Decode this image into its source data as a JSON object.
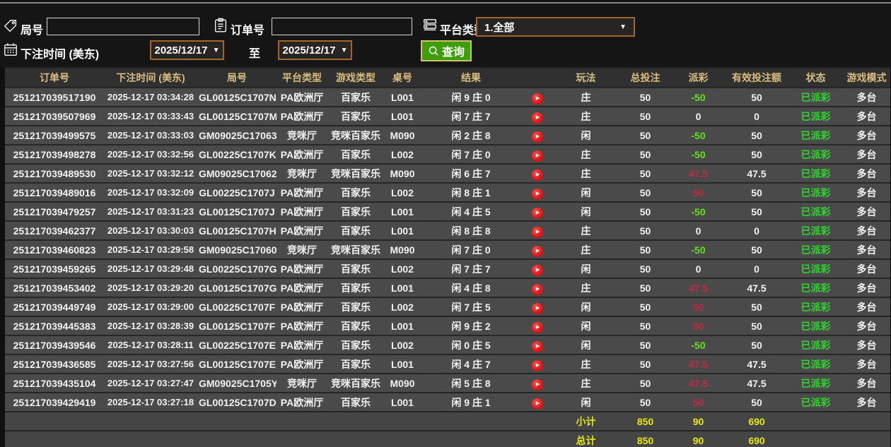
{
  "filters": {
    "round_label": "局号",
    "order_label": "订单号",
    "platform_label": "平台类型",
    "platform_value": "1.全部",
    "bet_time_label": "下注时间 (美东)",
    "date_from": "2025/12/17",
    "date_to": "2025/12/17",
    "to_label": "至",
    "search_label": "查询",
    "round_value": "",
    "order_value": ""
  },
  "colors": {
    "header_text": "#d9bd80",
    "row_bg": "#4a4a4a",
    "loss_green": "#62e01a",
    "win_red": "#c12a40",
    "paid_green": "#2ed52e",
    "total_yellow": "#e6e800",
    "button_green": "#3e9f0b",
    "select_border_orange": "#a0662a"
  },
  "table": {
    "headers": [
      "订单号",
      "下注时间 (美东)",
      "局号",
      "平台类型",
      "游戏类型",
      "桌号",
      "结果",
      "",
      "玩法",
      "总投注",
      "派彩",
      "有效投注额",
      "状态",
      "游戏模式"
    ],
    "rows": [
      {
        "order_no": "251217039517190",
        "bet_time": "2025-12-17 03:34:28",
        "round_no": "GL00125C1707N",
        "platform": "PA欧洲厅",
        "game_type": "百家乐",
        "table_no": "L001",
        "result": "闲 9 庄 0",
        "play": "庄",
        "total_bet": "50",
        "payout": "-50",
        "payout_tone": "neg",
        "valid_bet": "50",
        "status": "已派彩",
        "mode": "多台"
      },
      {
        "order_no": "251217039507969",
        "bet_time": "2025-12-17 03:33:43",
        "round_no": "GL00125C1707M",
        "platform": "PA欧洲厅",
        "game_type": "百家乐",
        "table_no": "L001",
        "result": "闲 7 庄 7",
        "play": "庄",
        "total_bet": "50",
        "payout": "0",
        "payout_tone": "zero",
        "valid_bet": "0",
        "status": "已派彩",
        "mode": "多台"
      },
      {
        "order_no": "251217039499575",
        "bet_time": "2025-12-17 03:33:03",
        "round_no": "GM09025C17063",
        "platform": "竞咪厅",
        "game_type": "竞咪百家乐",
        "table_no": "M090",
        "result": "闲 2 庄 8",
        "play": "闲",
        "total_bet": "50",
        "payout": "-50",
        "payout_tone": "neg",
        "valid_bet": "50",
        "status": "已派彩",
        "mode": "多台"
      },
      {
        "order_no": "251217039498278",
        "bet_time": "2025-12-17 03:32:56",
        "round_no": "GL00225C1707K",
        "platform": "PA欧洲厅",
        "game_type": "百家乐",
        "table_no": "L002",
        "result": "闲 7 庄 0",
        "play": "庄",
        "total_bet": "50",
        "payout": "-50",
        "payout_tone": "neg",
        "valid_bet": "50",
        "status": "已派彩",
        "mode": "多台"
      },
      {
        "order_no": "251217039489530",
        "bet_time": "2025-12-17 03:32:12",
        "round_no": "GM09025C17062",
        "platform": "竞咪厅",
        "game_type": "竞咪百家乐",
        "table_no": "M090",
        "result": "闲 6 庄 7",
        "play": "庄",
        "total_bet": "50",
        "payout": "47.5",
        "payout_tone": "pos",
        "valid_bet": "47.5",
        "status": "已派彩",
        "mode": "多台"
      },
      {
        "order_no": "251217039489016",
        "bet_time": "2025-12-17 03:32:09",
        "round_no": "GL00225C1707J",
        "platform": "PA欧洲厅",
        "game_type": "百家乐",
        "table_no": "L002",
        "result": "闲 8 庄 1",
        "play": "闲",
        "total_bet": "50",
        "payout": "50",
        "payout_tone": "pos",
        "valid_bet": "50",
        "status": "已派彩",
        "mode": "多台"
      },
      {
        "order_no": "251217039479257",
        "bet_time": "2025-12-17 03:31:23",
        "round_no": "GL00125C1707J",
        "platform": "PA欧洲厅",
        "game_type": "百家乐",
        "table_no": "L001",
        "result": "闲 4 庄 5",
        "play": "闲",
        "total_bet": "50",
        "payout": "-50",
        "payout_tone": "neg",
        "valid_bet": "50",
        "status": "已派彩",
        "mode": "多台"
      },
      {
        "order_no": "251217039462377",
        "bet_time": "2025-12-17 03:30:03",
        "round_no": "GL00125C1707H",
        "platform": "PA欧洲厅",
        "game_type": "百家乐",
        "table_no": "L001",
        "result": "闲 8 庄 8",
        "play": "庄",
        "total_bet": "50",
        "payout": "0",
        "payout_tone": "zero",
        "valid_bet": "0",
        "status": "已派彩",
        "mode": "多台"
      },
      {
        "order_no": "251217039460823",
        "bet_time": "2025-12-17 03:29:58",
        "round_no": "GM09025C17060",
        "platform": "竞咪厅",
        "game_type": "竞咪百家乐",
        "table_no": "M090",
        "result": "闲 7 庄 0",
        "play": "庄",
        "total_bet": "50",
        "payout": "-50",
        "payout_tone": "neg",
        "valid_bet": "50",
        "status": "已派彩",
        "mode": "多台"
      },
      {
        "order_no": "251217039459265",
        "bet_time": "2025-12-17 03:29:48",
        "round_no": "GL00225C1707G",
        "platform": "PA欧洲厅",
        "game_type": "百家乐",
        "table_no": "L002",
        "result": "闲 7 庄 7",
        "play": "闲",
        "total_bet": "50",
        "payout": "0",
        "payout_tone": "zero",
        "valid_bet": "0",
        "status": "已派彩",
        "mode": "多台"
      },
      {
        "order_no": "251217039453402",
        "bet_time": "2025-12-17 03:29:20",
        "round_no": "GL00125C1707G",
        "platform": "PA欧洲厅",
        "game_type": "百家乐",
        "table_no": "L001",
        "result": "闲 4 庄 8",
        "play": "庄",
        "total_bet": "50",
        "payout": "47.5",
        "payout_tone": "pos",
        "valid_bet": "47.5",
        "status": "已派彩",
        "mode": "多台"
      },
      {
        "order_no": "251217039449749",
        "bet_time": "2025-12-17 03:29:00",
        "round_no": "GL00225C1707F",
        "platform": "PA欧洲厅",
        "game_type": "百家乐",
        "table_no": "L002",
        "result": "闲 7 庄 5",
        "play": "闲",
        "total_bet": "50",
        "payout": "50",
        "payout_tone": "pos",
        "valid_bet": "50",
        "status": "已派彩",
        "mode": "多台"
      },
      {
        "order_no": "251217039445383",
        "bet_time": "2025-12-17 03:28:39",
        "round_no": "GL00125C1707F",
        "platform": "PA欧洲厅",
        "game_type": "百家乐",
        "table_no": "L001",
        "result": "闲 9 庄 2",
        "play": "闲",
        "total_bet": "50",
        "payout": "50",
        "payout_tone": "pos",
        "valid_bet": "50",
        "status": "已派彩",
        "mode": "多台"
      },
      {
        "order_no": "251217039439546",
        "bet_time": "2025-12-17 03:28:11",
        "round_no": "GL00225C1707E",
        "platform": "PA欧洲厅",
        "game_type": "百家乐",
        "table_no": "L002",
        "result": "闲 0 庄 5",
        "play": "闲",
        "total_bet": "50",
        "payout": "-50",
        "payout_tone": "neg",
        "valid_bet": "50",
        "status": "已派彩",
        "mode": "多台"
      },
      {
        "order_no": "251217039436585",
        "bet_time": "2025-12-17 03:27:56",
        "round_no": "GL00125C1707E",
        "platform": "PA欧洲厅",
        "game_type": "百家乐",
        "table_no": "L001",
        "result": "闲 4 庄 7",
        "play": "庄",
        "total_bet": "50",
        "payout": "47.5",
        "payout_tone": "pos",
        "valid_bet": "47.5",
        "status": "已派彩",
        "mode": "多台"
      },
      {
        "order_no": "251217039435104",
        "bet_time": "2025-12-17 03:27:47",
        "round_no": "GM09025C1705Y",
        "platform": "竞咪厅",
        "game_type": "竞咪百家乐",
        "table_no": "M090",
        "result": "闲 5 庄 8",
        "play": "庄",
        "total_bet": "50",
        "payout": "47.5",
        "payout_tone": "pos",
        "valid_bet": "47.5",
        "status": "已派彩",
        "mode": "多台"
      },
      {
        "order_no": "251217039429419",
        "bet_time": "2025-12-17 03:27:18",
        "round_no": "GL00125C1707D",
        "platform": "PA欧洲厅",
        "game_type": "百家乐",
        "table_no": "L001",
        "result": "闲 9 庄 1",
        "play": "闲",
        "total_bet": "50",
        "payout": "50",
        "payout_tone": "pos",
        "valid_bet": "50",
        "status": "已派彩",
        "mode": "多台"
      }
    ],
    "subtotal": {
      "label": "小计",
      "total_bet": "850",
      "payout": "90",
      "valid_bet": "690"
    },
    "total": {
      "label": "总计",
      "total_bet": "850",
      "payout": "90",
      "valid_bet": "690"
    }
  }
}
